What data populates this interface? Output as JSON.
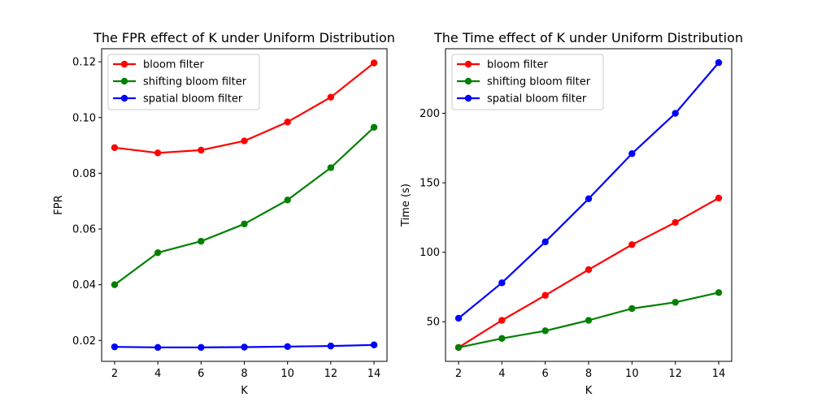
{
  "colors": {
    "bloom": "#ff0000",
    "shifting": "#008000",
    "spatial": "#0000ff"
  },
  "chart_data": [
    {
      "type": "line",
      "title": "The FPR effect of K under Uniform Distribution",
      "xlabel": "K",
      "ylabel": "FPR",
      "x": [
        2,
        4,
        6,
        8,
        10,
        12,
        14
      ],
      "xlim": [
        1.4,
        14.6
      ],
      "ylim": [
        0.0125,
        0.1247
      ],
      "xticks": [
        2,
        4,
        6,
        8,
        10,
        12,
        14
      ],
      "yticks": [
        0.02,
        0.04,
        0.06,
        0.08,
        0.1,
        0.12
      ],
      "ytick_labels": [
        "0.02",
        "0.04",
        "0.06",
        "0.08",
        "0.10",
        "0.12"
      ],
      "legend_position": "top-left",
      "grid": false,
      "series": [
        {
          "name": "bloom filter",
          "color": "#ff0000",
          "values": [
            0.0892,
            0.0873,
            0.0883,
            0.0916,
            0.0984,
            0.1073,
            0.1196
          ]
        },
        {
          "name": "shifting bloom filter",
          "color": "#008000",
          "values": [
            0.04,
            0.0515,
            0.0556,
            0.0618,
            0.0704,
            0.082,
            0.0965
          ]
        },
        {
          "name": "spatial bloom filter",
          "color": "#0000ff",
          "values": [
            0.0177,
            0.0175,
            0.0175,
            0.0176,
            0.0178,
            0.018,
            0.0184
          ]
        }
      ]
    },
    {
      "type": "line",
      "title": "The Time effect of K under Uniform Distribution",
      "xlabel": "K",
      "ylabel": "Time (s)",
      "x": [
        2,
        4,
        6,
        8,
        10,
        12,
        14
      ],
      "xlim": [
        1.4,
        14.6
      ],
      "ylim": [
        21.5,
        246.5
      ],
      "xticks": [
        2,
        4,
        6,
        8,
        10,
        12,
        14
      ],
      "yticks": [
        50,
        100,
        150,
        200
      ],
      "ytick_labels": [
        "50",
        "100",
        "150",
        "200"
      ],
      "legend_position": "top-left",
      "grid": false,
      "series": [
        {
          "name": "bloom filter",
          "color": "#ff0000",
          "values": [
            31.5,
            51,
            69,
            87.5,
            105.5,
            121.5,
            139
          ]
        },
        {
          "name": "shifting bloom filter",
          "color": "#008000",
          "values": [
            31.5,
            38,
            43.5,
            51,
            59.5,
            64,
            71
          ]
        },
        {
          "name": "spatial bloom filter",
          "color": "#0000ff",
          "values": [
            52.5,
            78,
            107.5,
            138.5,
            171,
            200,
            236.5
          ]
        }
      ]
    }
  ]
}
